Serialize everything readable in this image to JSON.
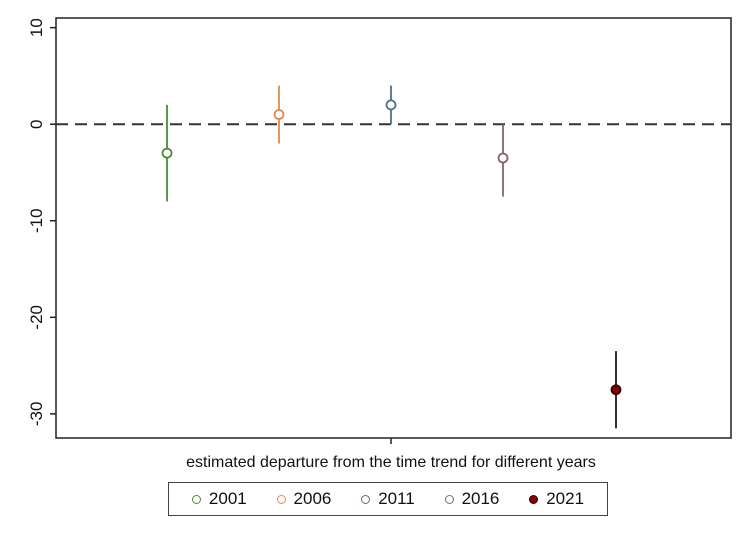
{
  "chart_data": {
    "type": "scatter",
    "title": "",
    "xlabel": "estimated departure from the time trend for different years",
    "ylabel": "",
    "ylim": [
      -32.5,
      11
    ],
    "yticks": [
      10,
      0,
      -10,
      -20,
      -30
    ],
    "ytick_labels": [
      "10",
      "0",
      "-10",
      "-20",
      "-30"
    ],
    "reference_line": {
      "y": 0,
      "style": "dashed"
    },
    "grid": false,
    "legend_position": "bottom",
    "series": [
      {
        "name": "2001",
        "x": 1,
        "y": -3.0,
        "ci": [
          -8.0,
          2.0
        ],
        "color": "#4a8a3c",
        "filled": false
      },
      {
        "name": "2006",
        "x": 2,
        "y": 1.0,
        "ci": [
          -2.0,
          4.0
        ],
        "color": "#e08a4c",
        "filled": false
      },
      {
        "name": "2011",
        "x": 3,
        "y": 2.0,
        "ci": [
          0.0,
          4.0
        ],
        "color": "#4f6f8f",
        "filled": false
      },
      {
        "name": "2016",
        "x": 4,
        "y": -3.5,
        "ci": [
          -7.5,
          0.0
        ],
        "color": "#8a6070",
        "filled": false
      },
      {
        "name": "2021",
        "x": 5,
        "y": -27.5,
        "ci": [
          -31.5,
          -23.5
        ],
        "color": "#8b0000",
        "filled": true
      }
    ]
  }
}
